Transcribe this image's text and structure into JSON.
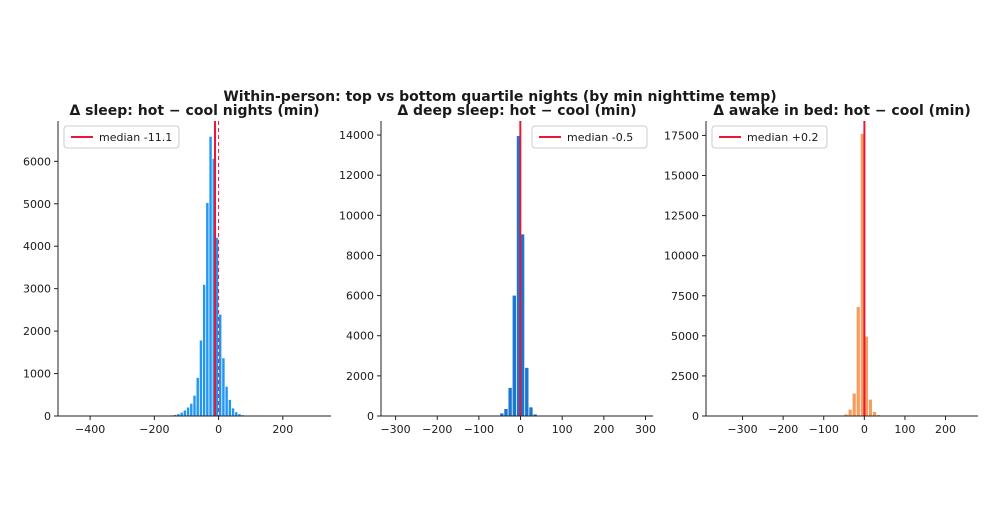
{
  "suptitle": "Within-person: top vs bottom quartile nights (by min nighttime temp)",
  "chart_data": [
    {
      "type": "bar",
      "title": "Δ sleep: hot − cool nights (min)",
      "color": "#2196f3",
      "median_color": "#e8173a",
      "zero_line_color": "#e8173a",
      "legend_label": "median -11.1",
      "legend_position": "top-left",
      "median": -11.1,
      "xlim": [
        -500,
        350
      ],
      "ylim": [
        0,
        6950
      ],
      "xticks": [
        -400,
        -200,
        0,
        200
      ],
      "yticks": [
        0,
        1000,
        2000,
        3000,
        4000,
        5000,
        6000
      ],
      "bin_edges": [
        -150,
        -140,
        -130,
        -120,
        -110,
        -100,
        -90,
        -80,
        -70,
        -60,
        -50,
        -40,
        -30,
        -20,
        -10,
        0,
        10,
        20,
        30,
        40,
        50,
        60,
        70,
        80,
        90,
        100,
        110,
        120,
        130
      ],
      "counts": [
        15,
        25,
        45,
        80,
        130,
        200,
        290,
        480,
        900,
        1780,
        3090,
        5020,
        6580,
        6060,
        4200,
        2390,
        1360,
        690,
        380,
        180,
        90,
        45,
        20,
        10,
        0,
        0,
        0,
        0
      ]
    },
    {
      "type": "bar",
      "title": "Δ deep sleep: hot − cool (min)",
      "color": "#1976d2",
      "median_color": "#e8173a",
      "zero_line_color": "#e8173a",
      "legend_label": "median -0.5",
      "legend_position": "top-right",
      "median": -0.5,
      "xlim": [
        -335,
        318
      ],
      "ylim": [
        0,
        14700
      ],
      "xticks": [
        -300,
        -200,
        -100,
        0,
        100,
        200,
        300
      ],
      "yticks": [
        0,
        2000,
        4000,
        6000,
        8000,
        10000,
        12000,
        14000
      ],
      "bin_edges": [
        -60,
        -50,
        -40,
        -30,
        -20,
        -10,
        0,
        10,
        20,
        30,
        40,
        50,
        60
      ],
      "counts": [
        20,
        130,
        350,
        1400,
        6000,
        13950,
        9050,
        2400,
        430,
        80,
        15,
        5
      ]
    },
    {
      "type": "bar",
      "title": "Δ awake in bed: hot − cool (min)",
      "color": "#f59e5f",
      "median_color": "#e8173a",
      "zero_line_color": "#e8173a",
      "legend_label": "median +0.2",
      "legend_position": "top-left",
      "median": 0.2,
      "xlim": [
        -390,
        280
      ],
      "ylim": [
        0,
        18400
      ],
      "xticks": [
        -300,
        -200,
        -100,
        0,
        100,
        200
      ],
      "yticks": [
        0,
        2500,
        5000,
        7500,
        10000,
        12500,
        15000,
        17500
      ],
      "bin_edges": [
        -50,
        -40,
        -30,
        -20,
        -10,
        0,
        10,
        20,
        30,
        40,
        50
      ],
      "counts": [
        100,
        400,
        1400,
        6800,
        17600,
        4950,
        1020,
        250,
        60,
        15
      ]
    }
  ]
}
